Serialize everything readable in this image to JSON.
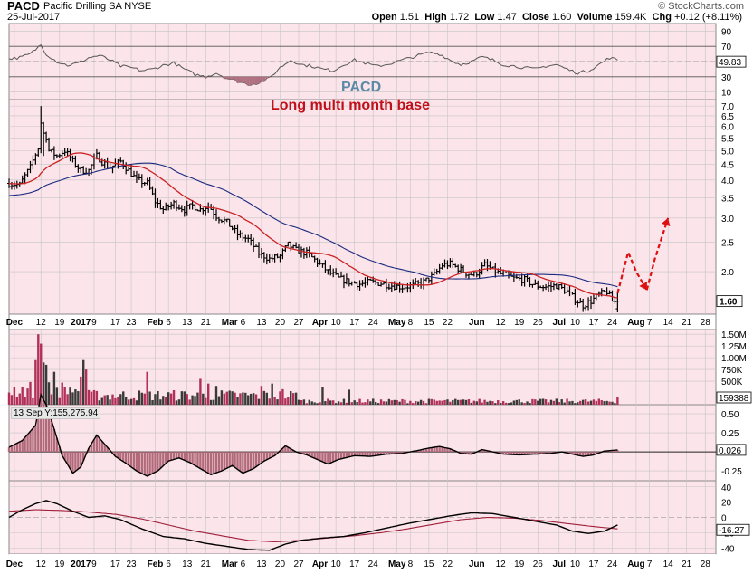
{
  "header": {
    "ticker": "PACD",
    "company": "Pacific Drilling SA",
    "exchange": "NYSE",
    "date": "25-Jul-2017",
    "brand": "© StockCharts.com",
    "open_label": "Open",
    "open": "1.51",
    "high_label": "High",
    "high": "1.72",
    "low_label": "Low",
    "low": "1.47",
    "close_label": "Close",
    "close": "1.60",
    "volume_label": "Volume",
    "volume": "159.4K",
    "chg_label": "Chg",
    "chg": "+0.12 (+8.11%)"
  },
  "annotations": {
    "ticker_label": "PACD",
    "note": "Long multi month base"
  },
  "tooltip": "13 Sep Y:155,275.94",
  "colors": {
    "background": "#ffffff",
    "panel_bg": "#fbe4ea",
    "grid": "#c5c5c5",
    "price_bar": "#000000",
    "ma_fast": "#cc2222",
    "ma_slow": "#1a2b80",
    "volume_up": "#b0305a",
    "volume_down": "#3a3a3a",
    "macd_line": "#000000",
    "macd_signal": "#a0203a",
    "histogram": "#b26a7a",
    "rsi_line": "#555555",
    "arrow": "#dd1111"
  },
  "chart_data": {
    "type": "ohlc",
    "x_labels": [
      {
        "d": 2,
        "t": "Dec"
      },
      {
        "d": 12,
        "t": "12"
      },
      {
        "d": 19,
        "t": "19"
      },
      {
        "d": 27,
        "t": "2017"
      },
      {
        "d": 32,
        "t": "9"
      },
      {
        "d": 40,
        "t": "17"
      },
      {
        "d": 46,
        "t": "23"
      },
      {
        "d": 55,
        "t": "Feb"
      },
      {
        "d": 60,
        "t": "6"
      },
      {
        "d": 67,
        "t": "13"
      },
      {
        "d": 74,
        "t": "21"
      },
      {
        "d": 83,
        "t": "Mar"
      },
      {
        "d": 88,
        "t": "6"
      },
      {
        "d": 95,
        "t": "13"
      },
      {
        "d": 102,
        "t": "20"
      },
      {
        "d": 109,
        "t": "27"
      },
      {
        "d": 117,
        "t": "Apr"
      },
      {
        "d": 123,
        "t": "10"
      },
      {
        "d": 130,
        "t": "17"
      },
      {
        "d": 137,
        "t": "24"
      },
      {
        "d": 146,
        "t": "May"
      },
      {
        "d": 151,
        "t": "8"
      },
      {
        "d": 158,
        "t": "15"
      },
      {
        "d": 165,
        "t": "22"
      },
      {
        "d": 176,
        "t": "Jun"
      },
      {
        "d": 185,
        "t": "12"
      },
      {
        "d": 192,
        "t": "19"
      },
      {
        "d": 199,
        "t": "26"
      },
      {
        "d": 207,
        "t": "Jul"
      },
      {
        "d": 213,
        "t": "10"
      },
      {
        "d": 220,
        "t": "17"
      },
      {
        "d": 227,
        "t": "24"
      },
      {
        "d": 236,
        "t": "Aug"
      },
      {
        "d": 241,
        "t": "7"
      },
      {
        "d": 248,
        "t": "14"
      },
      {
        "d": 255,
        "t": "21"
      },
      {
        "d": 262,
        "t": "28"
      }
    ],
    "price": {
      "scale": "log",
      "ticks": [
        2.0,
        2.5,
        3.0,
        3.5,
        4.0,
        4.5,
        5.0,
        5.5,
        6.0,
        6.5,
        7.0
      ],
      "tick_labels": [
        "2.0",
        "2.5",
        "3.0",
        "3.5",
        "4.0",
        "4.5",
        "5.0",
        "5.5",
        "6.0",
        "6.5",
        "7.0"
      ],
      "last_label": "1.60",
      "ma_fast_period": 20,
      "ma_slow_period": 50,
      "anchors": [
        [
          0,
          3.9
        ],
        [
          4,
          3.85
        ],
        [
          8,
          4.4
        ],
        [
          11,
          5.1
        ],
        [
          13,
          6.1
        ],
        [
          15,
          5.0
        ],
        [
          18,
          4.8
        ],
        [
          21,
          5.0
        ],
        [
          24,
          4.6
        ],
        [
          27,
          4.3
        ],
        [
          30,
          4.3
        ],
        [
          33,
          4.8
        ],
        [
          35,
          4.6
        ],
        [
          38,
          4.4
        ],
        [
          42,
          4.6
        ],
        [
          45,
          4.3
        ],
        [
          48,
          4.0
        ],
        [
          52,
          3.9
        ],
        [
          55,
          3.4
        ],
        [
          58,
          3.2
        ],
        [
          62,
          3.35
        ],
        [
          66,
          3.2
        ],
        [
          69,
          3.3
        ],
        [
          72,
          3.2
        ],
        [
          75,
          3.3
        ],
        [
          78,
          3.05
        ],
        [
          82,
          2.9
        ],
        [
          86,
          2.65
        ],
        [
          90,
          2.55
        ],
        [
          94,
          2.3
        ],
        [
          98,
          2.2
        ],
        [
          102,
          2.25
        ],
        [
          105,
          2.45
        ],
        [
          108,
          2.35
        ],
        [
          112,
          2.3
        ],
        [
          116,
          2.15
        ],
        [
          120,
          2.0
        ],
        [
          124,
          1.9
        ],
        [
          128,
          1.85
        ],
        [
          132,
          1.82
        ],
        [
          136,
          1.85
        ],
        [
          140,
          1.83
        ],
        [
          144,
          1.8
        ],
        [
          148,
          1.78
        ],
        [
          152,
          1.8
        ],
        [
          156,
          1.85
        ],
        [
          160,
          1.95
        ],
        [
          163,
          2.1
        ],
        [
          166,
          2.12
        ],
        [
          169,
          2.05
        ],
        [
          172,
          1.98
        ],
        [
          175,
          1.95
        ],
        [
          179,
          2.1
        ],
        [
          182,
          2.02
        ],
        [
          186,
          1.95
        ],
        [
          190,
          1.9
        ],
        [
          194,
          1.88
        ],
        [
          198,
          1.8
        ],
        [
          202,
          1.78
        ],
        [
          206,
          1.8
        ],
        [
          210,
          1.72
        ],
        [
          213,
          1.62
        ],
        [
          216,
          1.55
        ],
        [
          219,
          1.6
        ],
        [
          222,
          1.68
        ],
        [
          225,
          1.72
        ],
        [
          227,
          1.6
        ],
        [
          229,
          1.58
        ]
      ],
      "spike": [
        [
          12,
          7.0,
          4.9
        ],
        [
          13,
          6.2,
          4.8
        ]
      ]
    },
    "projection_arrows": [
      [
        [
          229,
          1.7
        ],
        [
          233,
          2.32
        ],
        [
          236,
          2.0
        ],
        [
          240,
          1.74
        ]
      ],
      [
        [
          240,
          1.74
        ],
        [
          243,
          2.2
        ],
        [
          248,
          3.0
        ]
      ]
    ],
    "volume": {
      "ticks": [
        0.5,
        0.75,
        1.0,
        1.25,
        1.5
      ],
      "tick_labels": [
        "500K",
        "750K",
        "1.00M",
        "1.25M",
        "1.50M"
      ],
      "unit": "M",
      "last_label": "159388",
      "spikes": [
        [
          10,
          0.95
        ],
        [
          11,
          1.5
        ],
        [
          12,
          1.3
        ],
        [
          13,
          0.9
        ],
        [
          14,
          0.85
        ],
        [
          17,
          0.7
        ],
        [
          27,
          0.6
        ],
        [
          28,
          0.95
        ],
        [
          29,
          0.75
        ],
        [
          52,
          0.7
        ],
        [
          72,
          0.55
        ],
        [
          75,
          0.45
        ],
        [
          78,
          0.4
        ],
        [
          95,
          0.4
        ],
        [
          99,
          0.45
        ],
        [
          103,
          0.33
        ],
        [
          118,
          0.38
        ],
        [
          128,
          0.32
        ]
      ]
    },
    "macd": {
      "ticks": [
        -0.25,
        0,
        0.25,
        0.5
      ],
      "tick_labels": [
        "-0.25",
        "0.00",
        "0.25",
        "0.50"
      ],
      "last_label": "0.026",
      "hist_anchors": [
        [
          0,
          0.06
        ],
        [
          5,
          0.15
        ],
        [
          10,
          0.35
        ],
        [
          12,
          0.75
        ],
        [
          14,
          0.62
        ],
        [
          17,
          0.3
        ],
        [
          20,
          -0.05
        ],
        [
          24,
          -0.28
        ],
        [
          27,
          -0.2
        ],
        [
          30,
          0.05
        ],
        [
          33,
          0.22
        ],
        [
          36,
          0.1
        ],
        [
          40,
          -0.06
        ],
        [
          44,
          -0.15
        ],
        [
          48,
          -0.25
        ],
        [
          52,
          -0.32
        ],
        [
          56,
          -0.25
        ],
        [
          60,
          -0.12
        ],
        [
          64,
          -0.08
        ],
        [
          68,
          -0.14
        ],
        [
          72,
          -0.22
        ],
        [
          76,
          -0.3
        ],
        [
          80,
          -0.25
        ],
        [
          84,
          -0.18
        ],
        [
          88,
          -0.28
        ],
        [
          92,
          -0.22
        ],
        [
          96,
          -0.12
        ],
        [
          100,
          -0.05
        ],
        [
          104,
          0.08
        ],
        [
          108,
          0.0
        ],
        [
          112,
          -0.04
        ],
        [
          116,
          -0.1
        ],
        [
          120,
          -0.16
        ],
        [
          124,
          -0.1
        ],
        [
          130,
          -0.05
        ],
        [
          136,
          -0.06
        ],
        [
          142,
          -0.03
        ],
        [
          148,
          -0.02
        ],
        [
          154,
          0.02
        ],
        [
          158,
          0.05
        ],
        [
          162,
          0.07
        ],
        [
          166,
          0.04
        ],
        [
          170,
          -0.02
        ],
        [
          174,
          -0.03
        ],
        [
          178,
          0.03
        ],
        [
          182,
          0.0
        ],
        [
          186,
          -0.03
        ],
        [
          192,
          -0.04
        ],
        [
          198,
          -0.03
        ],
        [
          204,
          -0.02
        ],
        [
          208,
          0.0
        ],
        [
          212,
          -0.03
        ],
        [
          216,
          -0.06
        ],
        [
          220,
          -0.04
        ],
        [
          224,
          0.01
        ],
        [
          229,
          0.026
        ]
      ]
    },
    "macd_lines": {
      "ticks": [
        -40,
        -20,
        0,
        20,
        40
      ],
      "tick_labels": [
        "-40",
        "-20",
        "0",
        "20",
        "40"
      ],
      "last_label": "-16.27",
      "fast_anchors": [
        [
          0,
          0
        ],
        [
          5,
          10
        ],
        [
          10,
          18
        ],
        [
          14,
          22
        ],
        [
          18,
          18
        ],
        [
          24,
          8
        ],
        [
          30,
          0
        ],
        [
          36,
          2
        ],
        [
          42,
          -3
        ],
        [
          50,
          -15
        ],
        [
          58,
          -25
        ],
        [
          66,
          -28
        ],
        [
          74,
          -34
        ],
        [
          82,
          -38
        ],
        [
          90,
          -42
        ],
        [
          98,
          -43
        ],
        [
          104,
          -35
        ],
        [
          110,
          -30
        ],
        [
          118,
          -27
        ],
        [
          126,
          -25
        ],
        [
          134,
          -20
        ],
        [
          142,
          -14
        ],
        [
          150,
          -8
        ],
        [
          158,
          -3
        ],
        [
          166,
          2
        ],
        [
          174,
          6
        ],
        [
          182,
          5
        ],
        [
          190,
          0
        ],
        [
          198,
          -5
        ],
        [
          206,
          -10
        ],
        [
          212,
          -18
        ],
        [
          218,
          -21
        ],
        [
          224,
          -18
        ],
        [
          229,
          -10
        ]
      ],
      "slow_anchors": [
        [
          0,
          8
        ],
        [
          10,
          10
        ],
        [
          20,
          9
        ],
        [
          30,
          7
        ],
        [
          40,
          4
        ],
        [
          50,
          -2
        ],
        [
          60,
          -10
        ],
        [
          70,
          -18
        ],
        [
          80,
          -24
        ],
        [
          90,
          -30
        ],
        [
          100,
          -32
        ],
        [
          110,
          -30
        ],
        [
          120,
          -27
        ],
        [
          130,
          -24
        ],
        [
          140,
          -20
        ],
        [
          150,
          -15
        ],
        [
          160,
          -9
        ],
        [
          170,
          -3
        ],
        [
          180,
          0
        ],
        [
          190,
          -1
        ],
        [
          200,
          -4
        ],
        [
          210,
          -8
        ],
        [
          220,
          -12
        ],
        [
          229,
          -15
        ]
      ]
    },
    "rsi": {
      "ticks": [
        10,
        30,
        50,
        70,
        90
      ],
      "tick_labels": [
        "10",
        "30",
        "50",
        "70",
        "90"
      ],
      "last_label": "49.83",
      "anchors": [
        [
          0,
          54
        ],
        [
          4,
          55
        ],
        [
          8,
          60
        ],
        [
          12,
          72
        ],
        [
          14,
          60
        ],
        [
          18,
          50
        ],
        [
          22,
          45
        ],
        [
          26,
          48
        ],
        [
          30,
          55
        ],
        [
          34,
          58
        ],
        [
          38,
          52
        ],
        [
          42,
          44
        ],
        [
          46,
          42
        ],
        [
          50,
          38
        ],
        [
          54,
          40
        ],
        [
          58,
          45
        ],
        [
          62,
          48
        ],
        [
          66,
          40
        ],
        [
          70,
          33
        ],
        [
          74,
          30
        ],
        [
          78,
          35
        ],
        [
          82,
          28
        ],
        [
          86,
          24
        ],
        [
          90,
          20
        ],
        [
          94,
          22
        ],
        [
          98,
          28
        ],
        [
          102,
          42
        ],
        [
          106,
          52
        ],
        [
          110,
          46
        ],
        [
          114,
          44
        ],
        [
          118,
          40
        ],
        [
          122,
          38
        ],
        [
          126,
          46
        ],
        [
          130,
          52
        ],
        [
          134,
          48
        ],
        [
          138,
          44
        ],
        [
          142,
          46
        ],
        [
          146,
          50
        ],
        [
          150,
          54
        ],
        [
          154,
          58
        ],
        [
          158,
          62
        ],
        [
          162,
          60
        ],
        [
          166,
          52
        ],
        [
          170,
          46
        ],
        [
          174,
          50
        ],
        [
          178,
          56
        ],
        [
          182,
          52
        ],
        [
          186,
          46
        ],
        [
          190,
          44
        ],
        [
          194,
          42
        ],
        [
          198,
          40
        ],
        [
          202,
          44
        ],
        [
          206,
          46
        ],
        [
          210,
          40
        ],
        [
          214,
          35
        ],
        [
          218,
          38
        ],
        [
          222,
          46
        ],
        [
          226,
          55
        ],
        [
          229,
          52
        ]
      ]
    }
  }
}
